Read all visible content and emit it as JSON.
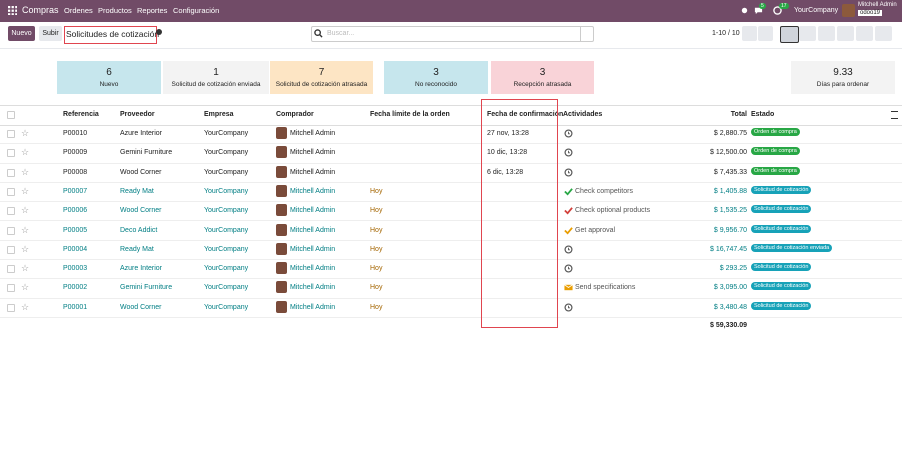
{
  "navbar": {
    "app": "Compras",
    "menus": [
      "Ordenes",
      "Productos",
      "Reportes",
      "Configuración"
    ],
    "badges": [
      "5",
      "17"
    ],
    "company": "YourCompany",
    "user": "Mitchell Admin",
    "database": "odoo19"
  },
  "control_panel": {
    "buttons": [
      "Nuevo",
      "Subir"
    ],
    "breadcrumb": "Solicitudes de cotización",
    "search_placeholder": "Buscar...",
    "pager": "1-10 / 10"
  },
  "dashboard": {
    "cards": [
      {
        "value": "6",
        "label": "Nuevo",
        "color": "#c6e6ed"
      },
      {
        "value": "1",
        "label": "Solicitud de cotización enviada",
        "color": "#f3f3f3"
      },
      {
        "value": "7",
        "label": "Solicitud de cotización atrasada",
        "color": "#fde5c4"
      },
      {
        "value": "3",
        "label": "No reconocido",
        "color": "#c6e6ed"
      },
      {
        "value": "3",
        "label": "Recepción atrasada",
        "color": "#f9d3d8"
      }
    ],
    "summary": {
      "value": "9.33",
      "label": "Días para ordenar"
    }
  },
  "table": {
    "headers": [
      "Referencia",
      "Proveedor",
      "Empresa",
      "Comprador",
      "Fecha límite de la orden",
      "Fecha de confirmación",
      "Actividades",
      "Total",
      "Estado"
    ],
    "rows": [
      {
        "reference": "P00010",
        "vendor": "Azure Interior",
        "company": "YourCompany",
        "buyer": "Mitchell Admin",
        "confirmation": "27 nov, 13:28",
        "activity_icon": "clock",
        "total": "$ 2,880.75",
        "status": "Orden de compra",
        "draft": false
      },
      {
        "reference": "P00009",
        "vendor": "Gemini Furniture",
        "company": "YourCompany",
        "buyer": "Mitchell Admin",
        "confirmation": "10 dic, 13:28",
        "activity_icon": "clock",
        "total": "$ 12,500.00",
        "status": "Orden de compra",
        "draft": false
      },
      {
        "reference": "P00008",
        "vendor": "Wood Corner",
        "company": "YourCompany",
        "buyer": "Mitchell Admin",
        "confirmation": "6 dic, 13:28",
        "activity_icon": "clock",
        "total": "$ 7,435.33",
        "status": "Orden de compra",
        "draft": false
      },
      {
        "reference": "P00007",
        "vendor": "Ready Mat",
        "company": "YourCompany",
        "buyer": "Mitchell Admin",
        "deadline": "Hoy",
        "activity_icon": "check-green",
        "activity": "Check competitors",
        "total": "$ 1,405.88",
        "status": "Solicitud de cotización",
        "draft": true
      },
      {
        "reference": "P00006",
        "vendor": "Wood Corner",
        "company": "YourCompany",
        "buyer": "Mitchell Admin",
        "deadline": "Hoy",
        "activity_icon": "check-red",
        "activity": "Check optional products",
        "total": "$ 1,535.25",
        "status": "Solicitud de cotización",
        "draft": true
      },
      {
        "reference": "P00005",
        "vendor": "Deco Addict",
        "company": "YourCompany",
        "buyer": "Mitchell Admin",
        "deadline": "Hoy",
        "activity_icon": "check-orange",
        "activity": "Get approval",
        "total": "$ 9,956.70",
        "status": "Solicitud de cotización",
        "draft": true
      },
      {
        "reference": "P00004",
        "vendor": "Ready Mat",
        "company": "YourCompany",
        "buyer": "Mitchell Admin",
        "deadline": "Hoy",
        "activity_icon": "clock",
        "total": "$ 16,747.45",
        "status": "Solicitud de cotización enviada",
        "draft": true
      },
      {
        "reference": "P00003",
        "vendor": "Azure Interior",
        "company": "YourCompany",
        "buyer": "Mitchell Admin",
        "deadline": "Hoy",
        "activity_icon": "clock",
        "total": "$ 293.25",
        "status": "Solicitud de cotización",
        "draft": true
      },
      {
        "reference": "P00002",
        "vendor": "Gemini Furniture",
        "company": "YourCompany",
        "buyer": "Mitchell Admin",
        "deadline": "Hoy",
        "activity_icon": "envelope",
        "activity": "Send specifications",
        "total": "$ 3,095.00",
        "status": "Solicitud de cotización",
        "draft": true
      },
      {
        "reference": "P00001",
        "vendor": "Wood Corner",
        "company": "YourCompany",
        "buyer": "Mitchell Admin",
        "deadline": "Hoy",
        "activity_icon": "clock",
        "total": "$ 3,480.48",
        "status": "Solicitud de cotización",
        "draft": true
      }
    ],
    "total": "$ 59,330.09"
  }
}
